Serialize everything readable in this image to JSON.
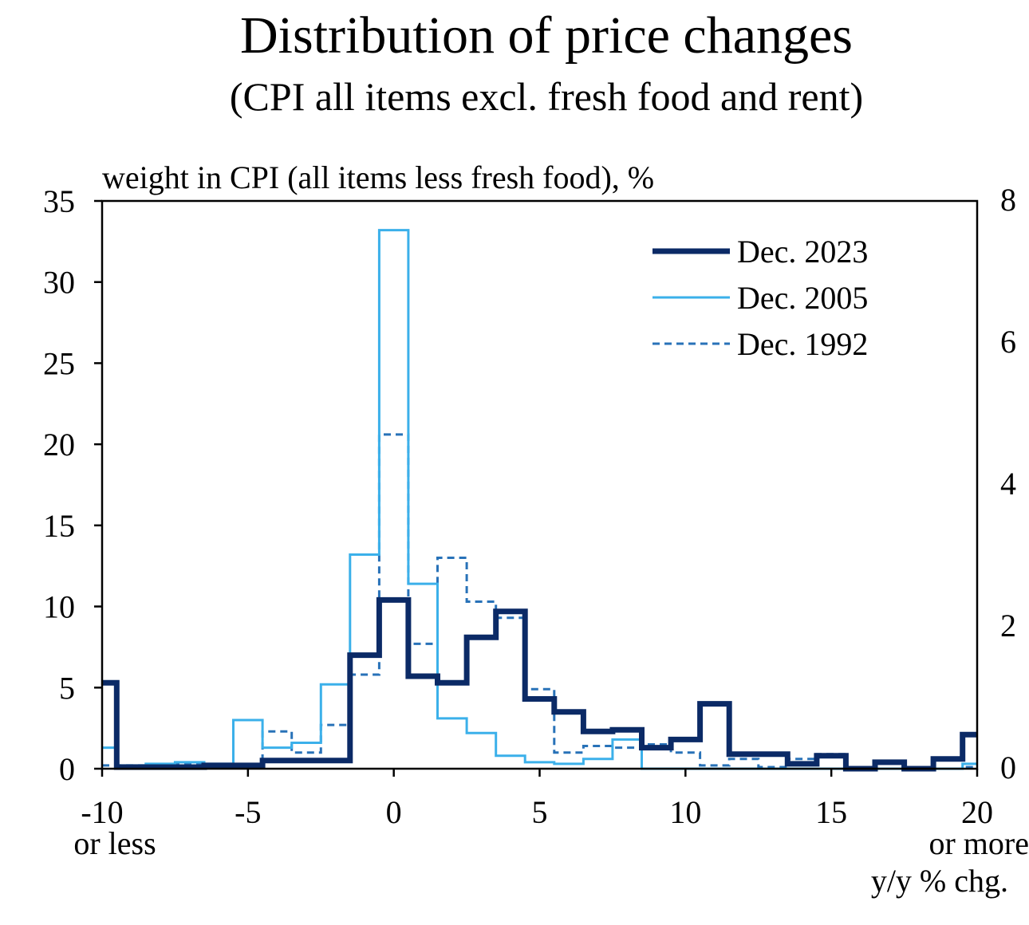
{
  "chart_data": {
    "type": "line",
    "title": "Distribution of price changes",
    "subtitle": "(CPI all items excl. fresh food and rent)",
    "ylabel": "weight in CPI (all items less fresh food), %",
    "xlabel": "y/y % chg.",
    "xlim": [
      -10,
      20
    ],
    "ylim": [
      0,
      35
    ],
    "y_ticks": [
      0,
      5,
      10,
      15,
      20,
      25,
      30,
      35
    ],
    "x_ticks": [
      -10,
      -5,
      0,
      5,
      10,
      15,
      20
    ],
    "x_tick_sublabels": {
      "-10": "or less",
      "20": "or more"
    },
    "right_axis_tick_labels": [
      "8",
      "6",
      "4",
      "2",
      "0"
    ],
    "legend_position": "top-right",
    "grid": false,
    "x": [
      -10,
      -9,
      -8,
      -7,
      -6,
      -5,
      -4,
      -3,
      -2,
      -1,
      0,
      1,
      2,
      3,
      4,
      5,
      6,
      7,
      8,
      9,
      10,
      11,
      12,
      13,
      14,
      15,
      16,
      17,
      18,
      19,
      20
    ],
    "series": [
      {
        "name": "Dec. 2023",
        "color": "#0b2a66",
        "style": "thick",
        "values": [
          5.3,
          0.1,
          0.1,
          0.1,
          0.2,
          0.2,
          0.5,
          0.5,
          0.5,
          7.0,
          10.4,
          5.7,
          5.3,
          8.1,
          9.7,
          4.3,
          3.5,
          2.3,
          2.4,
          1.3,
          1.8,
          4.0,
          0.9,
          0.9,
          0.3,
          0.8,
          0.0,
          0.4,
          0.0,
          0.6,
          2.1
        ]
      },
      {
        "name": "Dec. 2005",
        "color": "#3bb0ea",
        "style": "thin",
        "values": [
          1.3,
          0.2,
          0.3,
          0.4,
          0.3,
          3.0,
          1.3,
          1.6,
          5.2,
          13.2,
          33.2,
          11.4,
          3.1,
          2.2,
          0.8,
          0.4,
          0.3,
          0.6,
          1.8,
          0.0,
          0.0,
          0.0,
          0.0,
          0.0,
          0.0,
          0.0,
          0.0,
          0.0,
          0.0,
          0.0,
          0.3
        ]
      },
      {
        "name": "Dec. 1992",
        "color": "#2872b8",
        "style": "dashed",
        "values": [
          0.2,
          0.2,
          0.2,
          0.3,
          0.2,
          0.2,
          2.3,
          1.0,
          2.7,
          5.8,
          20.6,
          7.7,
          13.0,
          10.3,
          9.3,
          4.9,
          1.0,
          1.4,
          1.3,
          1.5,
          1.0,
          0.2,
          0.6,
          0.1,
          0.6,
          0.9,
          0.0,
          0.0,
          0.0,
          0.0,
          0.1
        ]
      }
    ]
  }
}
